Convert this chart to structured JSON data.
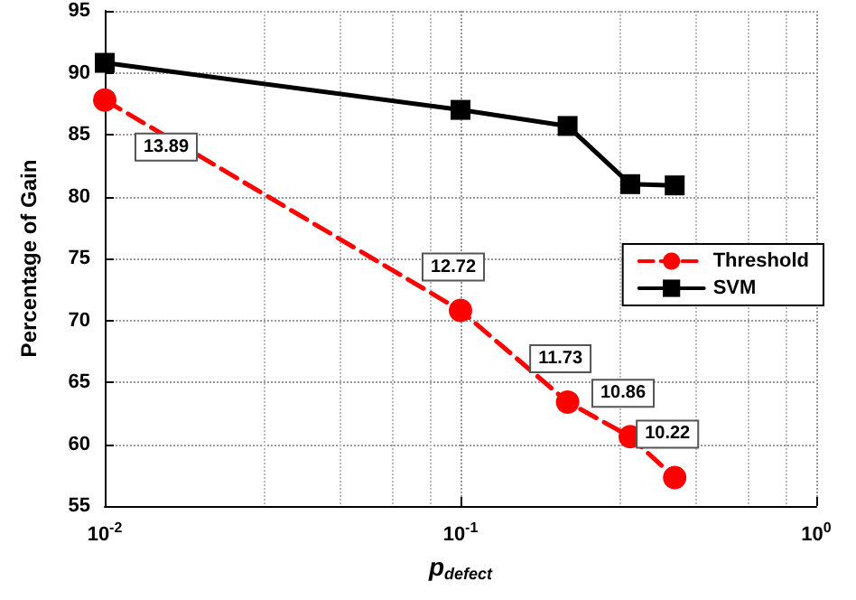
{
  "chart_data": {
    "type": "line",
    "xlabel": "p$_{defect}$",
    "ylabel": "Percentage of Gain",
    "x": [
      0.01,
      0.1,
      0.2,
      0.3,
      0.4
    ],
    "series": [
      {
        "name": "Threshold",
        "color": "#ff0000",
        "values": [
          87.8,
          70.8,
          63.4,
          60.6,
          57.3
        ],
        "marker": "circle",
        "line_style": "dashed"
      },
      {
        "name": "SVM",
        "color": "#000000",
        "values": [
          90.8,
          87.0,
          85.7,
          81.0,
          80.9
        ],
        "marker": "square",
        "line_style": "solid"
      }
    ],
    "log": "x",
    "xlim": [
      0.01,
      1
    ],
    "xticks": [
      {
        "value": 0.01,
        "label": "10$^{-2}$"
      },
      {
        "value": 0.1,
        "label": "10$^{-1}$"
      },
      {
        "value": 1,
        "label": "10$^{0}$"
      }
    ],
    "annotations": [
      {
        "text": "13.89",
        "x": 0.01,
        "y": 87.8
      },
      {
        "text": "12.72",
        "x": 0.1,
        "y": 70.8
      },
      {
        "text": "11.73",
        "x": 0.2,
        "y": 63.4
      },
      {
        "text": "10.86",
        "x": 0.3,
        "y": 60.6
      },
      {
        "text": "10.22",
        "x": 0.4,
        "y": 57.3
      }
    ],
    "ylim": [
      55,
      95
    ],
    "yticks": [
      55,
      60,
      65,
      70,
      75,
      80,
      85,
      90,
      95
    ],
    "grid": true,
    "legend": "right"
  }
}
